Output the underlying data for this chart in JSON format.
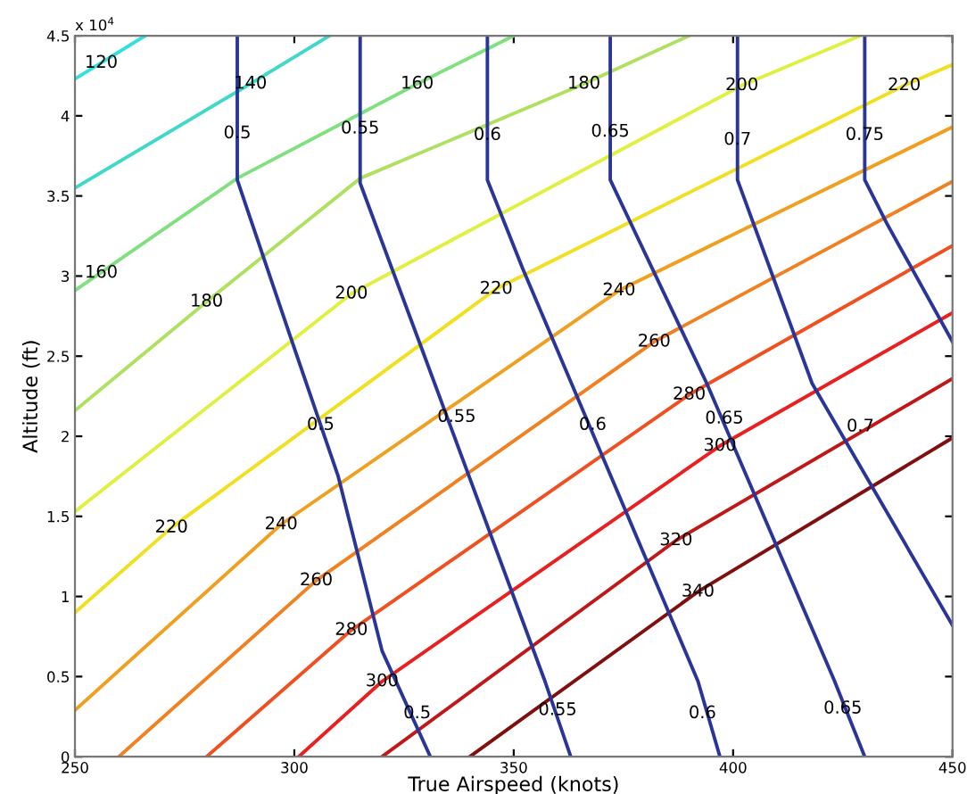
{
  "chart_data": {
    "type": "line",
    "xlabel": "True Airspeed (knots)",
    "ylabel": "Altitude (ft)",
    "xlim": [
      250,
      450
    ],
    "xticks": [
      250,
      300,
      350,
      400,
      450
    ],
    "ylim": [
      0,
      4.5
    ],
    "yticks": [
      0,
      0.5,
      1,
      1.5,
      2,
      2.5,
      3,
      3.5,
      4,
      4.5
    ],
    "grid": false,
    "legend": false,
    "marker": "none",
    "line_style": "solid",
    "series": [
      {
        "color": "#33e0e0",
        "x": [
          250,
          266
        ],
        "values": [
          4.23,
          4.5
        ]
      },
      {
        "color": "#40d8c8",
        "x": [
          250,
          290,
          308
        ],
        "values": [
          3.55,
          4.2,
          4.5
        ]
      },
      {
        "color": "#80e080",
        "x": [
          250,
          287,
          328,
          350
        ],
        "values": [
          2.91,
          3.61,
          4.2,
          4.5
        ]
      },
      {
        "color": "#b0e060",
        "x": [
          250,
          280,
          315,
          366,
          390
        ],
        "values": [
          2.16,
          2.84,
          3.61,
          4.2,
          4.5
        ]
      },
      {
        "color": "#e0f040",
        "x": [
          250,
          313,
          402,
          429
        ],
        "values": [
          1.53,
          2.89,
          4.19,
          4.5
        ]
      },
      {
        "color": "#f0e020",
        "x": [
          250,
          272,
          346,
          439,
          450
        ],
        "values": [
          0.9,
          1.43,
          2.92,
          4.19,
          4.32
        ]
      },
      {
        "color": "#f0a020",
        "x": [
          250,
          297,
          374,
          450
        ],
        "values": [
          0.29,
          1.45,
          2.91,
          3.93
        ]
      },
      {
        "color": "#f08020",
        "x": [
          260,
          305,
          382,
          450
        ],
        "values": [
          0,
          1.1,
          2.59,
          3.59
        ]
      },
      {
        "color": "#f05020",
        "x": [
          280,
          313,
          390,
          450
        ],
        "values": [
          0,
          0.79,
          2.26,
          3.19
        ]
      },
      {
        "color": "#e82020",
        "x": [
          301,
          320,
          397,
          450
        ],
        "values": [
          0,
          0.47,
          1.94,
          2.77
        ]
      },
      {
        "color": "#c01818",
        "x": [
          320,
          387,
          450
        ],
        "values": [
          0,
          1.35,
          2.36
        ]
      },
      {
        "color": "#801010",
        "x": [
          340,
          392,
          450
        ],
        "values": [
          0,
          1.03,
          1.99
        ]
      },
      {
        "color": "#2a3598",
        "x": [
          287,
          287,
          299,
          310,
          320,
          331
        ],
        "values": [
          4.5,
          3.6,
          2.63,
          1.75,
          0.66,
          0
        ]
      },
      {
        "color": "#2a3598",
        "x": [
          315,
          315,
          329,
          357,
          363
        ],
        "values": [
          4.5,
          3.58,
          2.55,
          0.48,
          0
        ]
      },
      {
        "color": "#2a3598",
        "x": [
          344,
          344,
          352,
          392,
          397
        ],
        "values": [
          4.5,
          3.6,
          3.05,
          0.47,
          0
        ]
      },
      {
        "color": "#2a3598",
        "x": [
          372,
          372,
          394,
          423,
          430
        ],
        "values": [
          4.5,
          3.6,
          2.33,
          0.48,
          0
        ]
      },
      {
        "color": "#2a3598",
        "x": [
          401,
          401,
          418,
          450
        ],
        "values": [
          4.5,
          3.6,
          2.33,
          0.82
        ]
      },
      {
        "color": "#2a3598",
        "x": [
          430,
          430,
          435,
          450
        ],
        "values": [
          4.5,
          3.6,
          3.33,
          2.59
        ]
      }
    ],
    "annotations": [
      "x 10$^{4}$",
      {
        "text": "120",
        "x": 256,
        "y": 4.33
      },
      {
        "text": "140",
        "x": 290,
        "y": 4.2
      },
      {
        "text": "160",
        "x": 256,
        "y": 3.02
      },
      {
        "text": "160",
        "x": 328,
        "y": 4.2
      },
      {
        "text": "180",
        "x": 280,
        "y": 2.84
      },
      {
        "text": "180",
        "x": 366,
        "y": 4.2
      },
      {
        "text": "200",
        "x": 313,
        "y": 2.89
      },
      {
        "text": "200",
        "x": 402,
        "y": 4.19
      },
      {
        "text": "220",
        "x": 272,
        "y": 1.43
      },
      {
        "text": "220",
        "x": 346,
        "y": 2.92
      },
      {
        "text": "220",
        "x": 439,
        "y": 4.19
      },
      {
        "text": "240",
        "x": 297,
        "y": 1.45
      },
      {
        "text": "240",
        "x": 374,
        "y": 2.91
      },
      {
        "text": "260",
        "x": 305,
        "y": 1.1
      },
      {
        "text": "260",
        "x": 382,
        "y": 2.59
      },
      {
        "text": "280",
        "x": 313,
        "y": 0.79
      },
      {
        "text": "280",
        "x": 390,
        "y": 2.26
      },
      {
        "text": "300",
        "x": 320,
        "y": 0.47
      },
      {
        "text": "300",
        "x": 397,
        "y": 1.94
      },
      {
        "text": "320",
        "x": 387,
        "y": 1.35
      },
      {
        "text": "340",
        "x": 392,
        "y": 1.03
      },
      {
        "text": "0.5",
        "x": 287,
        "y": 3.89
      },
      {
        "text": "0.55",
        "x": 315,
        "y": 3.92
      },
      {
        "text": "0.6",
        "x": 344,
        "y": 3.88
      },
      {
        "text": "0.65",
        "x": 372,
        "y": 3.9
      },
      {
        "text": "0.7",
        "x": 401,
        "y": 3.85
      },
      {
        "text": "0.75",
        "x": 430,
        "y": 3.88
      },
      {
        "text": "0.5",
        "x": 306,
        "y": 2.07
      },
      {
        "text": "0.55",
        "x": 337,
        "y": 2.12
      },
      {
        "text": "0.6",
        "x": 368,
        "y": 2.07
      },
      {
        "text": "0.65",
        "x": 398,
        "y": 2.11
      },
      {
        "text": "0.7",
        "x": 429,
        "y": 2.06
      },
      {
        "text": "0.5",
        "x": 328,
        "y": 0.27
      },
      {
        "text": "0.55",
        "x": 360,
        "y": 0.29
      },
      {
        "text": "0.6",
        "x": 393,
        "y": 0.27
      },
      {
        "text": "0.65",
        "x": 425,
        "y": 0.3
      }
    ]
  }
}
